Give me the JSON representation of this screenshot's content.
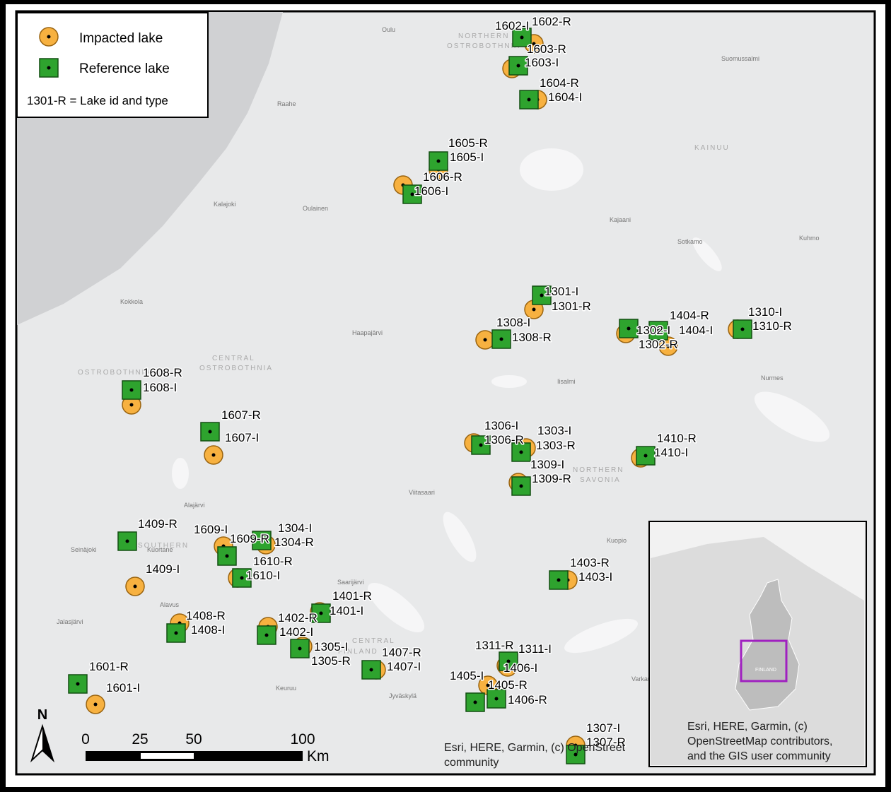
{
  "legend": {
    "items": [
      "Impacted lake",
      "Reference lake"
    ],
    "note": "1301-R = Lake id and type"
  },
  "impacted_lakes": [
    "1602-I",
    "1603-I",
    "1604-I",
    "1605-I",
    "1606-I",
    "1301-I",
    "1308-I",
    "1302-I",
    "1404-I",
    "1310-I",
    "1608-I",
    "1607-I",
    "1306-I",
    "1303-I",
    "1309-I",
    "1410-I",
    "1409-I",
    "1609-I",
    "1304-I",
    "1610-I",
    "1403-I",
    "1401-I",
    "1408-I",
    "1402-I",
    "1305-I",
    "1407-I",
    "1311-I",
    "1406-I",
    "1405-I",
    "1601-I",
    "1307-I"
  ],
  "reference_lakes": [
    "1602-R",
    "1603-R",
    "1604-R",
    "1605-R",
    "1606-R",
    "1301-R",
    "1308-R",
    "1302-R",
    "1404-R",
    "1310-R",
    "1608-R",
    "1607-R",
    "1306-R",
    "1303-R",
    "1309-R",
    "1410-R",
    "1409-R",
    "1609-R",
    "1304-R",
    "1610-R",
    "1403-R",
    "1401-R",
    "1408-R",
    "1402-R",
    "1305-R",
    "1407-R",
    "1311-R",
    "1406-R",
    "1405-R",
    "1601-R",
    "1307-R"
  ],
  "place_names": [
    "Oulu",
    "Raahe",
    "Kalajoki",
    "Oulainen",
    "Kokkola",
    "Haapajärvi",
    "Kajaani",
    "Sotkamo",
    "Kuhmo",
    "Suomussalmi",
    "KAINUU",
    "Iisalmi",
    "Nurmes",
    "Viitasaari",
    "Alajärvi",
    "Seinäjoki",
    "Kuortane",
    "Alavus",
    "Jalasjärvi",
    "Saarijärvi",
    "Keuruu",
    "Jyväskylä",
    "Kuopio",
    "Varkaus",
    "NORTHERN",
    "OSTROBOTHNIA",
    "CENTRAL",
    "OSTROBOTHNIA",
    "OSTROBOTHNIA",
    "SOUTHERN",
    "NORTHERN",
    "SAVONIA",
    "CENTRAL",
    "FINLAND"
  ],
  "scale_bar": {
    "north": "N",
    "ticks": [
      "0",
      "25",
      "50",
      "100"
    ],
    "unit": "Km"
  },
  "attribution": [
    "Esri, HERE, Garmin, (c) OpenStreet",
    "community"
  ],
  "inset": {
    "label": "FINLAND",
    "attribution": [
      "Esri, HERE, Garmin, (c)",
      "OpenStreetMap contributors,",
      "and the GIS user community"
    ]
  }
}
